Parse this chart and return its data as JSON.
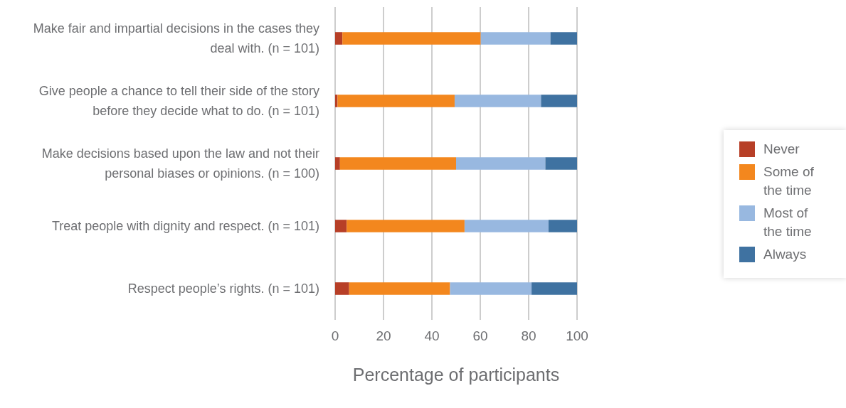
{
  "chart_data": {
    "type": "bar",
    "orientation": "horizontal",
    "stacked": true,
    "xlabel": "Percentage of participants",
    "categories": [
      "Make fair and impartial decisions in the cases they deal with. (n = 101)",
      "Give people a chance to tell their side of the story before they decide what to do. (n = 101)",
      "Make decisions based upon the law and not their personal biases or opinions. (n = 100)",
      "Treat people with dignity and respect. (n = 101)",
      "Respect people’s rights. (n = 101)"
    ],
    "series": [
      {
        "name": "Never",
        "color": "#b73f27",
        "values": [
          3.0,
          1.0,
          2.0,
          4.8,
          5.8
        ]
      },
      {
        "name": "Some of the time",
        "color": "#f3871e",
        "values": [
          57.2,
          48.4,
          48.0,
          48.7,
          41.7
        ]
      },
      {
        "name": "Most of the time",
        "color": "#98b8e0",
        "values": [
          28.8,
          35.7,
          36.9,
          34.7,
          33.7
        ]
      },
      {
        "name": "Always",
        "color": "#3f72a1",
        "values": [
          11.0,
          15.2,
          13.1,
          12.1,
          18.8
        ]
      }
    ],
    "xlim": [
      0,
      100
    ],
    "xticks": [
      0,
      20,
      40,
      60,
      80,
      100
    ],
    "grid": "x",
    "legend": "right"
  }
}
